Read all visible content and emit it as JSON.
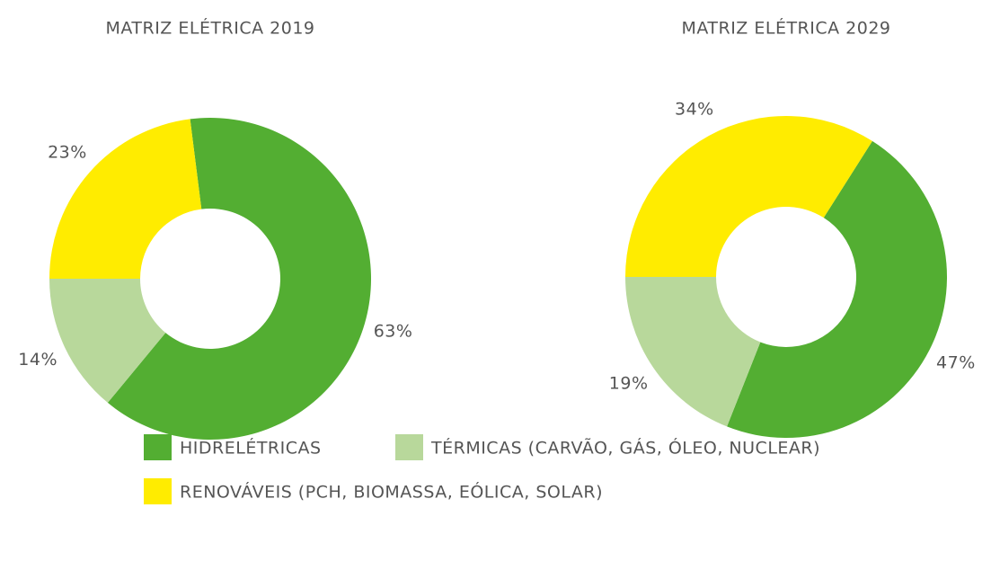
{
  "chart_data": [
    {
      "type": "donut",
      "title": "MATRIZ ELÉTRICA 2019",
      "categories": [
        "HIDRELÉTRICAS",
        "TÉRMICAS (CARVÃO, GÁS, ÓLEO, NUCLEAR)",
        "RENOVÁVEIS (PCH, BIOMASSA, EÓLICA, SOLAR)"
      ],
      "values": [
        63,
        14,
        23
      ],
      "value_labels": [
        "63%",
        "14%",
        "23%"
      ],
      "colors": [
        "#53ae32",
        "#b8d89b",
        "#ffec00"
      ]
    },
    {
      "type": "donut",
      "title": "MATRIZ ELÉTRICA 2029",
      "categories": [
        "HIDRELÉTRICAS",
        "TÉRMICAS (CARVÃO, GÁS, ÓLEO, NUCLEAR)",
        "RENOVÁVEIS (PCH, BIOMASSA, EÓLICA, SOLAR)"
      ],
      "values": [
        47,
        19,
        34
      ],
      "value_labels": [
        "47%",
        "19%",
        "34%"
      ],
      "colors": [
        "#53ae32",
        "#b8d89b",
        "#ffec00"
      ]
    }
  ]
}
